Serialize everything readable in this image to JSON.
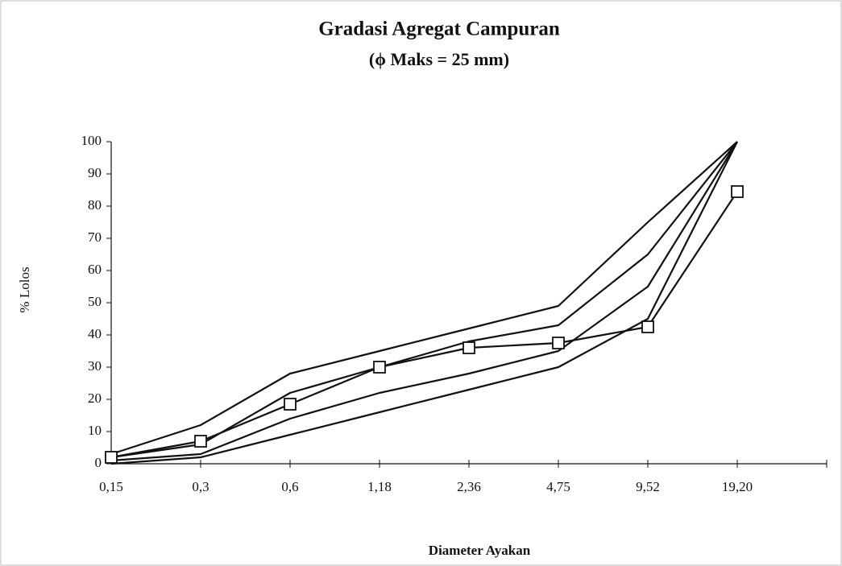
{
  "chart_data": {
    "type": "line",
    "title": "Gradasi Agregat Campuran",
    "subtitle": "(ϕ Maks = 25 mm)",
    "x_label": "Diameter Ayakan",
    "y_label": "% Lolos",
    "categories": [
      "0,15",
      "0,3",
      "0,6",
      "1,18",
      "2,36",
      "4,75",
      "9,52",
      "19,20"
    ],
    "series": [
      {
        "color": "#111111",
        "marker": "none",
        "values": [
          3,
          12,
          28,
          35,
          42,
          49,
          75,
          100
        ]
      },
      {
        "color": "#111111",
        "marker": "none",
        "values": [
          2,
          6,
          22,
          30,
          38,
          43,
          65,
          100
        ]
      },
      {
        "color": "#111111",
        "marker": "none",
        "values": [
          1,
          3,
          14,
          22,
          28,
          35,
          55,
          100
        ]
      },
      {
        "color": "#111111",
        "marker": "none",
        "values": [
          0,
          2,
          9,
          16,
          23,
          30,
          45,
          100
        ]
      },
      {
        "color": "#111111",
        "marker": "square",
        "values": [
          2,
          7,
          18.5,
          30,
          36,
          37.5,
          42.5,
          84.5
        ]
      }
    ],
    "ylim": [
      0,
      100
    ],
    "yticks": [
      0,
      10,
      20,
      30,
      40,
      50,
      60,
      70,
      80,
      90,
      100
    ],
    "grid": false
  }
}
